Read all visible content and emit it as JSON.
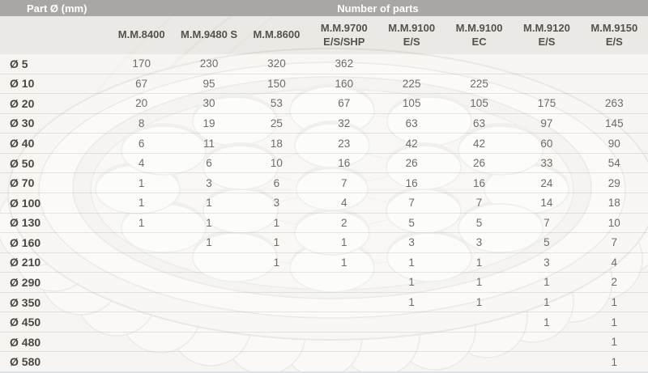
{
  "table": {
    "part_col_label": "Part Ø (mm)",
    "group_label": "Number of parts",
    "columns": [
      {
        "line1": "M.M.8400",
        "line2": ""
      },
      {
        "line1": "M.M.9480 S",
        "line2": ""
      },
      {
        "line1": "M.M.8600",
        "line2": ""
      },
      {
        "line1": "M.M.9700",
        "line2": "E/S/SHP"
      },
      {
        "line1": "M.M.9100",
        "line2": "E/S"
      },
      {
        "line1": "M.M.9100",
        "line2": "EC"
      },
      {
        "line1": "M.M.9120",
        "line2": "E/S"
      },
      {
        "line1": "M.M.9150",
        "line2": "E/S"
      }
    ],
    "rows": [
      {
        "diameter": "Ø 5",
        "values": [
          "170",
          "230",
          "320",
          "362",
          "",
          "",
          "",
          ""
        ]
      },
      {
        "diameter": "Ø 10",
        "values": [
          "67",
          "95",
          "150",
          "160",
          "225",
          "225",
          "",
          ""
        ]
      },
      {
        "diameter": "Ø 20",
        "values": [
          "20",
          "30",
          "53",
          "67",
          "105",
          "105",
          "175",
          "263"
        ]
      },
      {
        "diameter": "Ø 30",
        "values": [
          "8",
          "19",
          "25",
          "32",
          "63",
          "63",
          "97",
          "145"
        ]
      },
      {
        "diameter": "Ø 40",
        "values": [
          "6",
          "11",
          "18",
          "23",
          "42",
          "42",
          "60",
          "90"
        ]
      },
      {
        "diameter": "Ø 50",
        "values": [
          "4",
          "6",
          "10",
          "16",
          "26",
          "26",
          "33",
          "54"
        ]
      },
      {
        "diameter": "Ø 70",
        "values": [
          "1",
          "3",
          "6",
          "7",
          "16",
          "16",
          "24",
          "29"
        ]
      },
      {
        "diameter": "Ø 100",
        "values": [
          "1",
          "1",
          "3",
          "4",
          "7",
          "7",
          "14",
          "18"
        ]
      },
      {
        "diameter": "Ø 130",
        "values": [
          "1",
          "1",
          "1",
          "2",
          "5",
          "5",
          "7",
          "10"
        ]
      },
      {
        "diameter": "Ø 160",
        "values": [
          "",
          "1",
          "1",
          "1",
          "3",
          "3",
          "5",
          "7"
        ]
      },
      {
        "diameter": "Ø 210",
        "values": [
          "",
          "",
          "1",
          "1",
          "1",
          "1",
          "3",
          "4"
        ]
      },
      {
        "diameter": "Ø 290",
        "values": [
          "",
          "",
          "",
          "",
          "1",
          "1",
          "1",
          "2"
        ]
      },
      {
        "diameter": "Ø 350",
        "values": [
          "",
          "",
          "",
          "",
          "1",
          "1",
          "1",
          "1"
        ]
      },
      {
        "diameter": "Ø 450",
        "values": [
          "",
          "",
          "",
          "",
          "",
          "",
          "1",
          "1"
        ]
      },
      {
        "diameter": "Ø 480",
        "values": [
          "",
          "",
          "",
          "",
          "",
          "",
          "",
          "1"
        ]
      },
      {
        "diameter": "Ø 580",
        "values": [
          "",
          "",
          "",
          "",
          "",
          "",
          "",
          "1"
        ]
      }
    ]
  },
  "colors": {
    "page_bg": "#f1efeb",
    "header_band_bg": "rgba(158,157,156,0.88)",
    "header_text": "#ffffff",
    "colhead_text": "#55514d",
    "row_label_text": "#4b4743",
    "value_text": "#6f6c68",
    "bottom_divider": "#dfe3e8"
  }
}
